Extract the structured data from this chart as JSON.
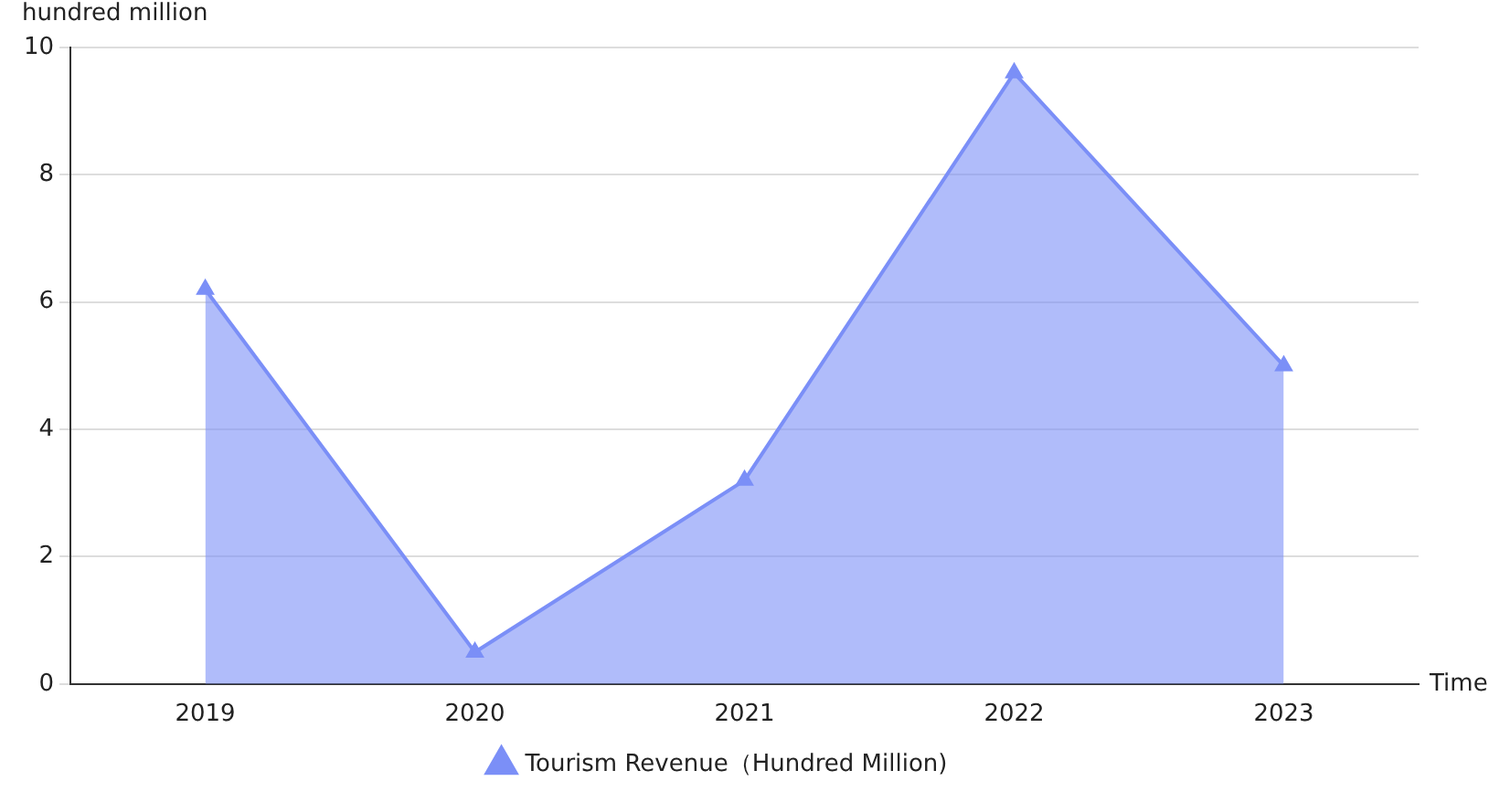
{
  "chart_data": {
    "type": "area",
    "xlabel": "Time",
    "ylabel": "hundred million",
    "categories": [
      "2019",
      "2020",
      "2021",
      "2022",
      "2023"
    ],
    "series": [
      {
        "name": "Tourism Revenue（Hundred Million)",
        "color": "#7b8ff7",
        "values": [
          6.2,
          0.5,
          3.2,
          9.6,
          5.0
        ]
      }
    ],
    "ylim": [
      0,
      10
    ],
    "yticks": [
      0,
      2,
      4,
      6,
      8,
      10
    ],
    "grid": "y",
    "legend": "bottom",
    "marker": "triangle",
    "line_style": "solid"
  }
}
